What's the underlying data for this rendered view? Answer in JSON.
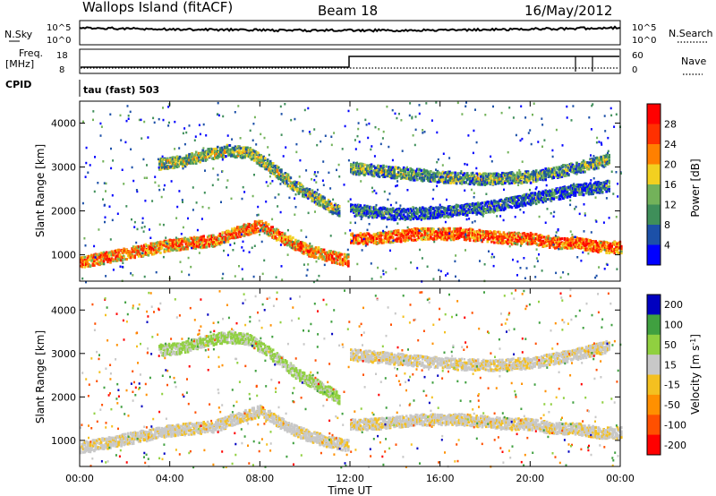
{
  "header": {
    "title": "Wallops Island (fitACF)",
    "beam": "Beam 18",
    "date": "16/May/2012"
  },
  "top_panels": {
    "nsky_label": "N.Sky",
    "nsky_ticks": [
      "10^5",
      "10^0"
    ],
    "nsearch_label": "N.Search",
    "nsearch_ticks": [
      "10^5",
      "10^0"
    ],
    "freq_label": "Freq.",
    "freq_unit": "[MHz]",
    "freq_ticks": [
      "18",
      "8"
    ],
    "nave_label": "Nave",
    "nave_ticks": [
      "60",
      "0"
    ],
    "cpid_label": "CPID",
    "cpid_text": "tau (fast) 503"
  },
  "colors": {
    "power": [
      "#0000ff",
      "#1c50a8",
      "#3f8f5a",
      "#73b25a",
      "#f2d020",
      "#ff8000",
      "#ff3000",
      "#ff0000"
    ],
    "velocity": [
      "#ff0000",
      "#ff5000",
      "#ff9000",
      "#f4c020",
      "#c8c8c8",
      "#90d040",
      "#40a040",
      "#0000c0"
    ]
  },
  "chart_data": [
    {
      "type": "heatmap",
      "title": "",
      "xlabel": "Time UT",
      "ylabel": "Slant Range [km]",
      "xlim": [
        "00:00",
        "24:00"
      ],
      "ylim": [
        400,
        4500
      ],
      "xticks": [
        "00:00",
        "04:00",
        "08:00",
        "12:00",
        "16:00",
        "20:00",
        "00:00"
      ],
      "yticks": [
        "1000",
        "2000",
        "3000",
        "4000"
      ],
      "colorbar": {
        "label": "Power [dB]",
        "ticks": [
          "4",
          "8",
          "12",
          "16",
          "20",
          "24",
          "28"
        ],
        "range": [
          0,
          30
        ]
      },
      "bands": [
        {
          "times": [
            0,
            1,
            2,
            3,
            4,
            5,
            6,
            7,
            8,
            9,
            10,
            11,
            11.9
          ],
          "ranges": [
            850,
            950,
            1050,
            1150,
            1250,
            1300,
            1350,
            1550,
            1700,
            1400,
            1150,
            1000,
            900
          ],
          "power": 22
        },
        {
          "times": [
            12,
            13,
            14,
            15,
            16,
            17,
            18,
            19,
            20,
            21,
            22,
            23,
            24
          ],
          "ranges": [
            1400,
            1400,
            1450,
            1500,
            1500,
            1500,
            1450,
            1400,
            1400,
            1300,
            1300,
            1200,
            1200
          ],
          "power": 24
        },
        {
          "times": [
            3.5,
            4.5,
            5.5,
            6.5,
            7.5,
            8.5,
            9.5,
            10.5,
            11.5
          ],
          "ranges": [
            3100,
            3150,
            3300,
            3400,
            3350,
            3000,
            2600,
            2300,
            2000
          ],
          "power": 14
        },
        {
          "times": [
            12,
            14,
            16,
            18,
            20,
            22,
            23.5
          ],
          "ranges": [
            2050,
            1950,
            2000,
            2100,
            2300,
            2500,
            2600
          ],
          "power": 8
        },
        {
          "times": [
            12,
            14,
            16,
            18,
            20,
            22,
            23.5
          ],
          "ranges": [
            3000,
            2900,
            2800,
            2750,
            2800,
            3000,
            3200
          ],
          "power": 12
        }
      ]
    },
    {
      "type": "heatmap",
      "title": "",
      "xlabel": "Time UT",
      "ylabel": "Slant Range [km]",
      "xlim": [
        "00:00",
        "24:00"
      ],
      "ylim": [
        400,
        4500
      ],
      "xticks": [
        "00:00",
        "04:00",
        "08:00",
        "12:00",
        "16:00",
        "20:00",
        "00:00"
      ],
      "yticks": [
        "1000",
        "2000",
        "3000",
        "4000"
      ],
      "colorbar": {
        "label": "Velocity [m s^-1]",
        "ticks": [
          "200",
          "100",
          "50",
          "15",
          "-15",
          "-50",
          "-100",
          "-200"
        ],
        "range": [
          -250,
          250
        ]
      },
      "bands": [
        {
          "times": [
            0,
            1,
            2,
            3,
            4,
            5,
            6,
            7,
            8,
            9,
            10,
            11,
            11.9
          ],
          "ranges": [
            850,
            950,
            1050,
            1150,
            1250,
            1300,
            1350,
            1550,
            1700,
            1400,
            1150,
            1000,
            900
          ],
          "velocity": 0
        },
        {
          "times": [
            12,
            13,
            14,
            15,
            16,
            17,
            18,
            19,
            20,
            21,
            22,
            23,
            24
          ],
          "ranges": [
            1400,
            1400,
            1450,
            1500,
            1500,
            1500,
            1450,
            1400,
            1400,
            1300,
            1300,
            1200,
            1200
          ],
          "velocity": 0
        },
        {
          "times": [
            3.5,
            4.5,
            5.5,
            6.5,
            7.5,
            8.5,
            9.5,
            10.5,
            11.5
          ],
          "ranges": [
            3100,
            3150,
            3300,
            3400,
            3350,
            3000,
            2600,
            2300,
            2000
          ],
          "velocity": 60
        },
        {
          "times": [
            12,
            14,
            16,
            18,
            20,
            22,
            23.5
          ],
          "ranges": [
            3000,
            2900,
            2800,
            2750,
            2800,
            3000,
            3200
          ],
          "velocity": 0
        }
      ]
    }
  ]
}
